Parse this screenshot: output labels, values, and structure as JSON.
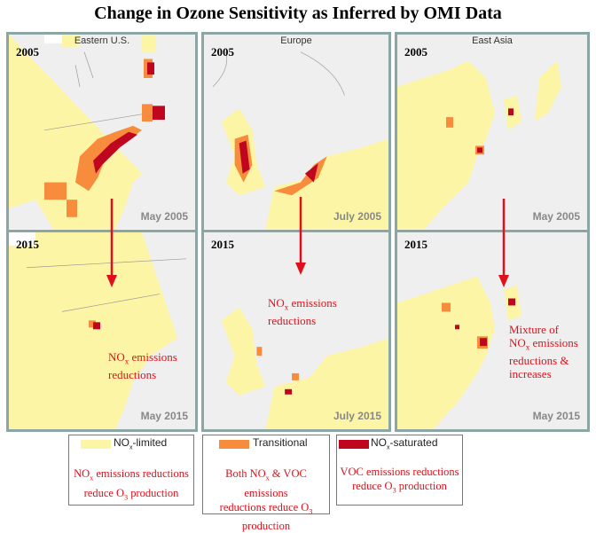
{
  "title": "Change in Ozone Sensitivity as Inferred by OMI Data",
  "colors": {
    "nox_limited": "#fdf5a6",
    "transitional": "#f68c3c",
    "nox_saturated": "#c0061f",
    "land": "#efefef",
    "frame": "#8ba6a4",
    "annotation": "#e0101a"
  },
  "panels": [
    {
      "region": "Eastern U.S.",
      "top": {
        "year": "2005",
        "date": "May 2005"
      },
      "bottom": {
        "year": "2015",
        "date": "May 2015",
        "note_a": "NO",
        "note_sub": "x",
        "note_b": " emissions",
        "note_c": "reductions"
      }
    },
    {
      "region": "Europe",
      "top": {
        "year": "2005",
        "date": "July 2005"
      },
      "bottom": {
        "year": "2015",
        "date": "July 2015",
        "note_a": "NO",
        "note_sub": "x",
        "note_b": " emissions",
        "note_c": "reductions"
      }
    },
    {
      "region": "East Asia",
      "top": {
        "year": "2005",
        "date": "May 2005"
      },
      "bottom": {
        "year": "2015",
        "date": "May 2015",
        "note_pre": "Mixture of",
        "note_a": "NO",
        "note_sub": "x",
        "note_b": " emissions",
        "note_c": "reductions &",
        "note_d": "increases"
      }
    }
  ],
  "legend": [
    {
      "label_a": "NO",
      "label_sub": "x",
      "label_b": "-limited",
      "text_a": "NO",
      "text_sub": "x",
      "text_b": " emissions reductions",
      "text_c": "reduce O",
      "text_sub2": "3",
      "text_d": " production"
    },
    {
      "label": "Transitional",
      "text_a": "Both NO",
      "text_sub": "x",
      "text_b": " & VOC emissions",
      "text_c": "reductions reduce O",
      "text_sub2": "3",
      "text_d": "production"
    },
    {
      "label_a": "NO",
      "label_sub": "x",
      "label_b": "-saturated",
      "text_a": "VOC emissions reductions",
      "text_c": "reduce O",
      "text_sub2": "3",
      "text_d": " production"
    }
  ]
}
